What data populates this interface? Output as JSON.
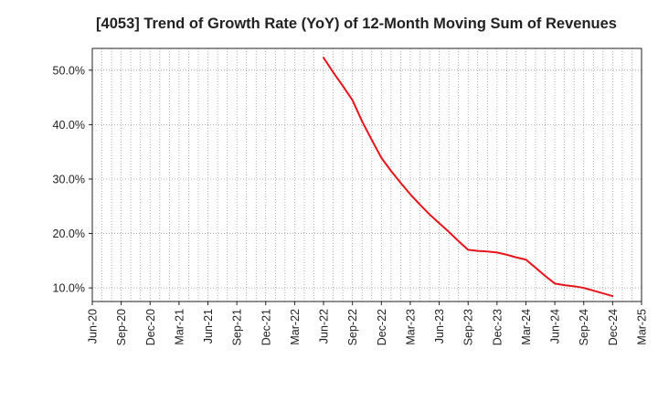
{
  "chart_data": {
    "type": "line",
    "title": "[4053]  Trend of Growth Rate (YoY) of 12-Month Moving Sum of Revenues",
    "xlabel": "",
    "ylabel": "",
    "x_ticks": [
      "Jun-20",
      "Sep-20",
      "Dec-20",
      "Mar-21",
      "Jun-21",
      "Sep-21",
      "Dec-21",
      "Mar-22",
      "Jun-22",
      "Sep-22",
      "Dec-22",
      "Mar-23",
      "Jun-23",
      "Sep-23",
      "Dec-23",
      "Mar-24",
      "Jun-24",
      "Sep-24",
      "Dec-24",
      "Mar-25"
    ],
    "y_ticks": [
      "10.0%",
      "20.0%",
      "30.0%",
      "40.0%",
      "50.0%"
    ],
    "y_tick_values": [
      10,
      20,
      30,
      40,
      50
    ],
    "ylim": [
      7.5,
      54
    ],
    "grid": true,
    "series": [
      {
        "color": "#e8141b",
        "x": [
          "Jun-22",
          "Jul-22",
          "Aug-22",
          "Sep-22",
          "Oct-22",
          "Nov-22",
          "Dec-22",
          "Jan-23",
          "Feb-23",
          "Mar-23",
          "Apr-23",
          "May-23",
          "Jun-23",
          "Jul-23",
          "Aug-23",
          "Sep-23",
          "Oct-23",
          "Nov-23",
          "Dec-23",
          "Jan-24",
          "Feb-24",
          "Mar-24",
          "Apr-24",
          "May-24",
          "Jun-24",
          "Jul-24",
          "Aug-24",
          "Sep-24",
          "Oct-24",
          "Nov-24",
          "Dec-24"
        ],
        "values": [
          52.3,
          49.6,
          47.1,
          44.5,
          40.6,
          37.2,
          33.9,
          31.5,
          29.3,
          27.2,
          25.3,
          23.5,
          21.9,
          20.3,
          18.6,
          17.0,
          16.8,
          16.7,
          16.5,
          16.1,
          15.6,
          15.2,
          13.7,
          12.2,
          10.8,
          10.5,
          10.3,
          10.0,
          9.5,
          9.0,
          8.5
        ]
      }
    ]
  }
}
